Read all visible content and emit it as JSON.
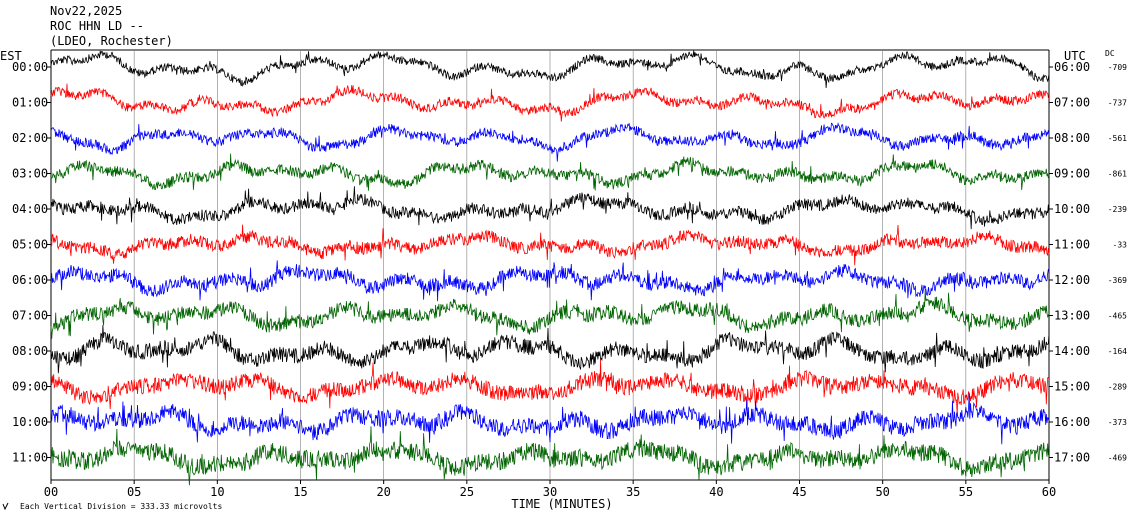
{
  "header": {
    "date": "Nov22,2025",
    "station": "ROC HHN LD --",
    "network": "(LDEO, Rochester)"
  },
  "axis": {
    "left_zone": "EST",
    "right_zone": "UTC",
    "dc_header": "DC",
    "xlabel": "TIME (MINUTES)",
    "footnote": "Each Vertical Division = 333.33 microvolts"
  },
  "chart_data": {
    "type": "line",
    "title": "",
    "xlabel": "TIME (MINUTES)",
    "xlim": [
      0,
      60
    ],
    "x_ticks": [
      "00",
      "05",
      "10",
      "15",
      "20",
      "25",
      "30",
      "35",
      "40",
      "45",
      "50",
      "55",
      "60"
    ],
    "grid": "vertical lines every 5 minutes",
    "trace_colors": [
      "#000000",
      "#ff0000",
      "#0000ff",
      "#006400"
    ],
    "rows": [
      {
        "est": "00:00",
        "utc": "06:00",
        "dc": "-709"
      },
      {
        "est": "01:00",
        "utc": "07:00",
        "dc": "-737"
      },
      {
        "est": "02:00",
        "utc": "08:00",
        "dc": "-561"
      },
      {
        "est": "03:00",
        "utc": "09:00",
        "dc": "-861"
      },
      {
        "est": "04:00",
        "utc": "10:00",
        "dc": "-239"
      },
      {
        "est": "05:00",
        "utc": "11:00",
        "dc": "-33"
      },
      {
        "est": "06:00",
        "utc": "12:00",
        "dc": "-369"
      },
      {
        "est": "07:00",
        "utc": "13:00",
        "dc": "-465"
      },
      {
        "est": "08:00",
        "utc": "14:00",
        "dc": "-164"
      },
      {
        "est": "09:00",
        "utc": "15:00",
        "dc": "-289"
      },
      {
        "est": "10:00",
        "utc": "16:00",
        "dc": "-373"
      },
      {
        "est": "11:00",
        "utc": "17:00",
        "dc": "-469"
      }
    ]
  }
}
